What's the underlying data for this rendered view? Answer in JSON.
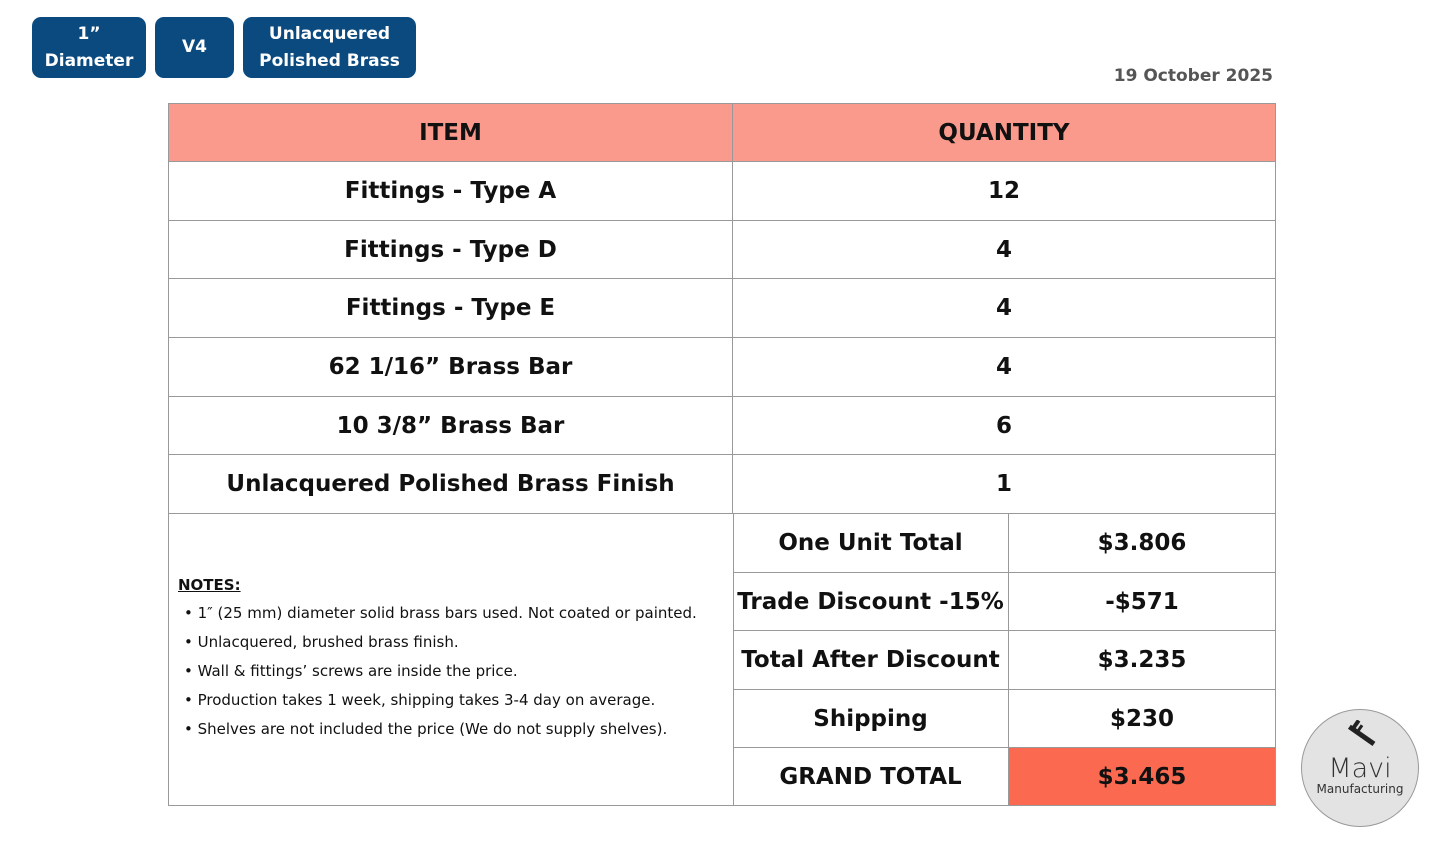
{
  "tags": [
    {
      "label": "1”\nDiameter",
      "l1": "1”",
      "l2": "Diameter"
    },
    {
      "l1": "V4",
      "l2": ""
    },
    {
      "l1": "Unlacquered",
      "l2": "Polished Brass"
    }
  ],
  "date": "19 October 2025",
  "table": {
    "headers": [
      "ITEM",
      "QUANTITY"
    ],
    "rows": [
      {
        "item": "Fittings - Type A",
        "qty": "12"
      },
      {
        "item": "Fittings - Type D",
        "qty": "4"
      },
      {
        "item": "Fittings - Type E",
        "qty": "4"
      },
      {
        "item": "62 1/16” Brass Bar",
        "qty": "4"
      },
      {
        "item": "10 3/8” Brass Bar",
        "qty": "6"
      },
      {
        "item": "Unlacquered Polished Brass Finish",
        "qty": "1"
      }
    ],
    "summary": [
      {
        "label": "One Unit Total",
        "value": "$3.806"
      },
      {
        "label": "Trade Discount -15%",
        "value": "-$571"
      },
      {
        "label": "Total After Discount",
        "value": "$3.235"
      },
      {
        "label": "Shipping",
        "value": "$230"
      },
      {
        "label": "GRAND TOTAL",
        "value": "$3.465"
      }
    ]
  },
  "notes": {
    "title": "NOTES:",
    "items": [
      "• 1″ (25 mm) diameter solid brass bars used. Not coated or painted.",
      "• Unlacquered, brushed brass finish.",
      "• Wall & fittings’ screws are inside the price.",
      "• Production takes 1 week, shipping takes 3-4 day on average.",
      "• Shelves are not included the price (We do not supply shelves)."
    ]
  },
  "logo": {
    "name": "Mavi",
    "sub": "Manufacturing",
    "icon": "caliper-icon"
  },
  "colors": {
    "tag": "#0b4a7f",
    "header": "#fa9a8c",
    "grand_total": "#fb6a50"
  }
}
